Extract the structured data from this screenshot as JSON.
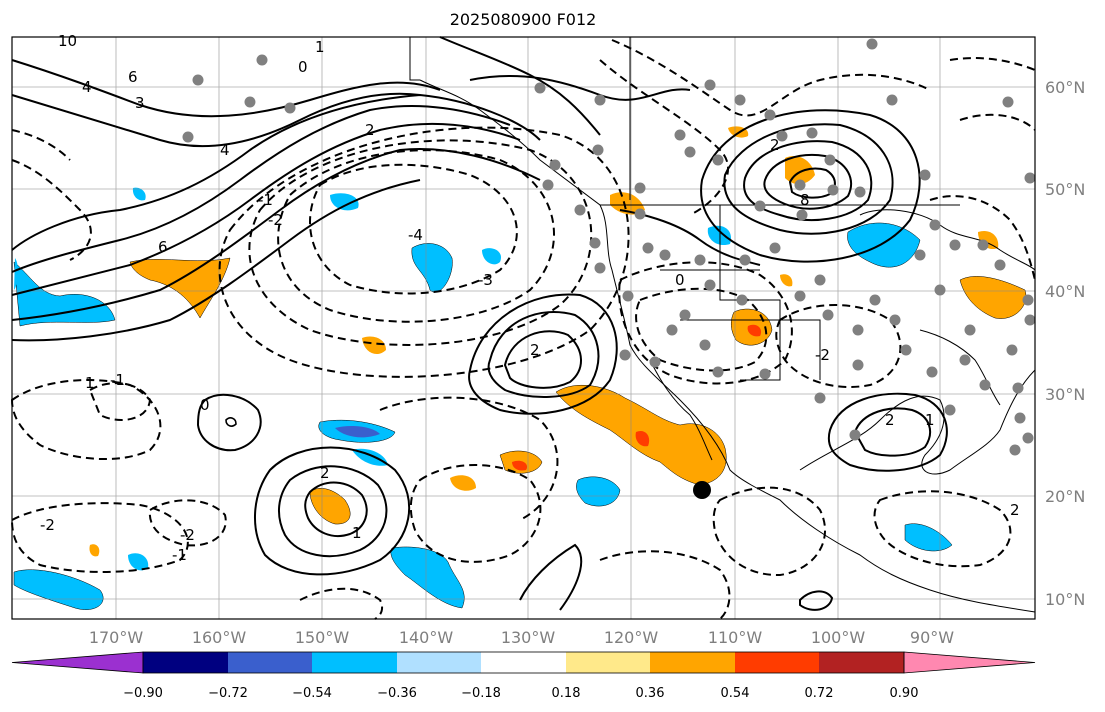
{
  "title": "2025080900 F012",
  "lon_labels": [
    "170°W",
    "160°W",
    "150°W",
    "140°W",
    "130°W",
    "120°W",
    "110°W",
    "100°W",
    "90°W"
  ],
  "lat_labels": [
    "60°N",
    "50°N",
    "40°N",
    "30°N",
    "20°N",
    "10°N"
  ],
  "colorbar": {
    "ticks": [
      "−0.90",
      "−0.72",
      "−0.54",
      "−0.36",
      "−0.18",
      "0.18",
      "0.36",
      "0.54",
      "0.72",
      "0.90"
    ],
    "colors": [
      "#9b30d0",
      "#000080",
      "#3a5fcd",
      "#00bfff",
      "#b0e0ff",
      "#ffffff",
      "#ffe98a",
      "#ffa500",
      "#ff3c00",
      "#b22222",
      "#ff88b0"
    ]
  },
  "contour_labels": [
    "10",
    "6",
    "4",
    "3",
    "2",
    "1",
    "0",
    "-1",
    "-2",
    "-3",
    "-4",
    "4",
    "6",
    "8",
    "2",
    "1",
    "0",
    "-1",
    "-2",
    "1",
    "2",
    "2",
    "2",
    "1",
    "-2",
    "-1",
    "-2",
    "0",
    "2"
  ],
  "marker": "storm-center"
}
